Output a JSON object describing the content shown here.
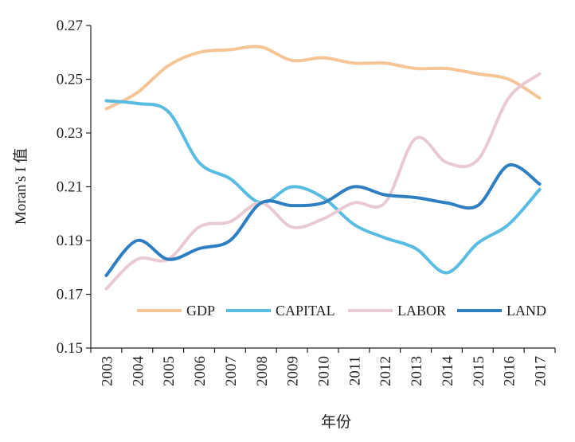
{
  "chart_data": {
    "type": "line",
    "xlabel": "年份",
    "ylabel": "Moran's I 值",
    "ylim": [
      0.15,
      0.27
    ],
    "yticks": [
      "0.15",
      "0.17",
      "0.19",
      "0.21",
      "0.23",
      "0.25",
      "0.27"
    ],
    "categories": [
      "2003",
      "2004",
      "2005",
      "2006",
      "2007",
      "2008",
      "2009",
      "2010",
      "2011",
      "2012",
      "2013",
      "2014",
      "2015",
      "2016",
      "2017"
    ],
    "legend_position": "bottom-inside",
    "grid": false,
    "series": [
      {
        "name": "GDP",
        "color": "#F6C596",
        "values": [
          0.239,
          0.245,
          0.255,
          0.26,
          0.261,
          0.262,
          0.257,
          0.258,
          0.256,
          0.256,
          0.254,
          0.254,
          0.252,
          0.25,
          0.243
        ]
      },
      {
        "name": "CAPITAL",
        "color": "#59BDE3",
        "values": [
          0.242,
          0.241,
          0.238,
          0.219,
          0.213,
          0.204,
          0.21,
          0.206,
          0.196,
          0.191,
          0.187,
          0.178,
          0.189,
          0.196,
          0.209
        ]
      },
      {
        "name": "LABOR",
        "color": "#EACAD2",
        "values": [
          0.172,
          0.183,
          0.183,
          0.195,
          0.197,
          0.204,
          0.195,
          0.198,
          0.204,
          0.204,
          0.228,
          0.219,
          0.22,
          0.243,
          0.252
        ]
      },
      {
        "name": "LAND",
        "color": "#2E7FC1",
        "values": [
          0.177,
          0.19,
          0.183,
          0.187,
          0.19,
          0.204,
          0.203,
          0.204,
          0.21,
          0.207,
          0.206,
          0.204,
          0.203,
          0.218,
          0.211
        ]
      }
    ]
  }
}
